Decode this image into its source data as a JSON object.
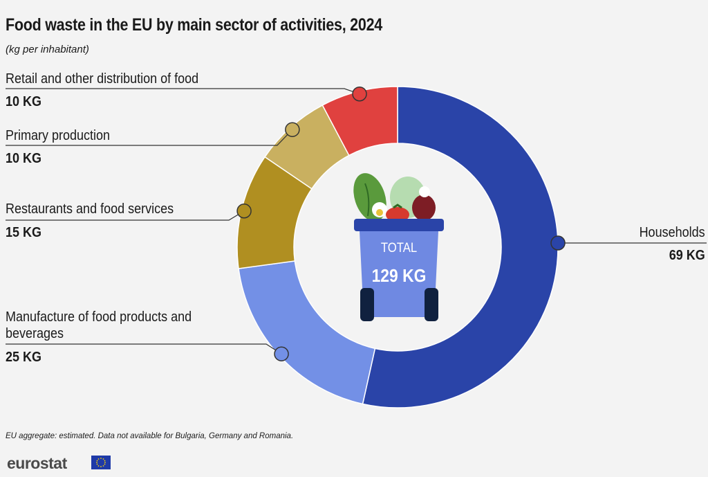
{
  "title": "Food waste in the EU by main sector of activities, 2024",
  "subtitle": "(kg per inhabitant)",
  "footnote": "EU aggregate: estimated. Data not available for Bulgaria, Germany and Romania.",
  "brand": "eurostat",
  "colors": {
    "background": "#f3f3f3",
    "households": "#2a44a8",
    "manufacture": "#7390e6",
    "restaurants": "#b08f21",
    "primary": "#c9b060",
    "retail": "#e0413f",
    "connector": "#333333"
  },
  "chart_data": {
    "type": "pie",
    "title": "Food waste in the EU by main sector of activities, 2024",
    "subtitle": "(kg per inhabitant)",
    "unit": "kg per inhabitant",
    "total_label": "TOTAL",
    "total_value": "129 KG",
    "total": 129,
    "slices": [
      {
        "label": "Households",
        "value_label": "69 KG",
        "value": 69,
        "color": "#2a44a8"
      },
      {
        "label": "Manufacture of food products and beverages",
        "value_label": "25 KG",
        "value": 25,
        "color": "#7390e6"
      },
      {
        "label": "Restaurants and food services",
        "value_label": "15 KG",
        "value": 15,
        "color": "#b08f21"
      },
      {
        "label": "Primary production",
        "value_label": "10 KG",
        "value": 10,
        "color": "#c9b060"
      },
      {
        "label": "Retail and other distribution of food",
        "value_label": "10 KG",
        "value": 10,
        "color": "#e0413f"
      }
    ]
  }
}
